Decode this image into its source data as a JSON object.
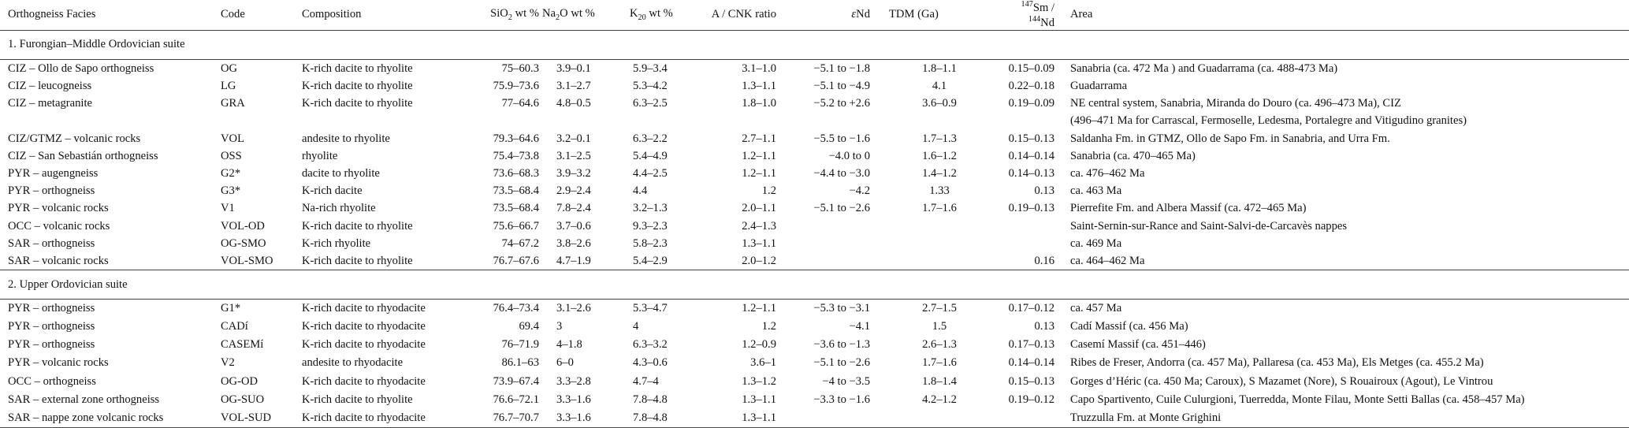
{
  "table": {
    "headers": [
      "Orthogneiss Facies",
      "Code",
      "Composition",
      [
        "SiO",
        {
          "text": "2",
          "style": "sub"
        },
        " wt %"
      ],
      [
        "Na",
        {
          "text": "2",
          "style": "sub"
        },
        "O wt %"
      ],
      [
        "K",
        {
          "text": "20",
          "style": "sub"
        },
        " wt %"
      ],
      "A / CNK ratio",
      [
        {
          "text": "ε",
          "style": "italic"
        },
        "Nd"
      ],
      "TDM (Ga)",
      [
        {
          "text": "147",
          "style": "sup"
        },
        "Sm / ",
        {
          "text": "144",
          "style": "sup"
        },
        "Nd"
      ],
      "Area"
    ],
    "sections": [
      {
        "title": "1. Furongian–Middle Ordovician suite",
        "rows": [
          [
            "CIZ – Ollo de Sapo orthogneiss",
            "OG",
            "K-rich dacite to rhyolite",
            "75–60.3",
            "3.9–0.1",
            "5.9–3.4",
            "3.1–1.0",
            "−5.1 to −1.8",
            "1.8–1.1",
            "0.15–0.09",
            "Sanabria (ca. 472 Ma ) and Guadarrama (ca. 488-473 Ma)"
          ],
          [
            "CIZ – leucogneiss",
            "LG",
            "K-rich dacite to rhyolite",
            "75.9–73.6",
            "3.1–2.7",
            "5.3–4.2",
            "1.3–1.1",
            "−5.1 to −4.9",
            "4.1",
            "0.22–0.18",
            "Guadarrama"
          ],
          [
            "CIZ – metagranite",
            "GRA",
            "K-rich dacite to rhyolite",
            "77–64.6",
            "4.8–0.5",
            "6.3–2.5",
            "1.8–1.0",
            "−5.2 to +2.6",
            "3.6–0.9",
            "0.19–0.09",
            "NE central system, Sanabria, Miranda do Douro (ca. 496–473 Ma), CIZ\n(496–471 Ma for Carrascal, Fermoselle, Ledesma, Portalegre and Vitigudino granites)"
          ],
          [
            "CIZ/GTMZ – volcanic rocks",
            "VOL",
            "andesite to rhyolite",
            "79.3–64.6",
            "3.2–0.1",
            "6.3–2.2",
            "2.7–1.1",
            "−5.5 to −1.6",
            "1.7–1.3",
            "0.15–0.13",
            "Saldanha Fm. in GTMZ, Ollo de Sapo Fm. in Sanabria, and Urra Fm."
          ],
          [
            "CIZ – San Sebastián orthogneiss",
            "OSS",
            "rhyolite",
            "75.4–73.8",
            "3.1–2.5",
            "5.4–4.9",
            "1.2–1.1",
            "−4.0 to 0",
            "1.6–1.2",
            "0.14–0.14",
            "Sanabria (ca. 470–465 Ma)"
          ],
          [
            "PYR – augengneiss",
            "G2*",
            "dacite to rhyolite",
            "73.6–68.3",
            "3.9–3.2",
            "4.4–2.5",
            "1.2–1.1",
            "−4.4 to −3.0",
            "1.4–1.2",
            "0.14–0.13",
            "ca. 476–462 Ma"
          ],
          [
            "PYR – orthogneiss",
            "G3*",
            "K-rich dacite",
            "73.5–68.4",
            "2.9–2.4",
            "4.4",
            "1.2",
            "−4.2",
            "1.33",
            "0.13",
            "ca. 463 Ma"
          ],
          [
            "PYR – volcanic rocks",
            "V1",
            "Na-rich rhyolite",
            "73.5–68.4",
            "7.8–2.4",
            "3.2–1.3",
            "2.0–1.1",
            "−5.1 to −2.6",
            "1.7–1.6",
            "0.19–0.13",
            "Pierrefite Fm. and Albera Massif (ca. 472–465 Ma)"
          ],
          [
            "OCC – volcanic rocks",
            "VOL-OD",
            "K-rich dacite to rhyolite",
            "75.6–66.7",
            "3.7–0.6",
            "9.3–2.3",
            "2.4–1.3",
            null,
            null,
            null,
            "Saint-Sernin-sur-Rance and Saint-Salvi-de-Carcavès nappes"
          ],
          [
            "SAR – orthogneiss",
            "OG-SMO",
            "K-rich rhyolite",
            "74–67.2",
            "3.8–2.6",
            "5.8–2.3",
            "1.3–1.1",
            null,
            null,
            null,
            "ca. 469 Ma"
          ],
          [
            "SAR – volcanic rocks",
            "VOL-SMO",
            "K-rich dacite to rhyolite",
            "76.7–67.6",
            "4.7–1.9",
            "5.4–2.9",
            "2.0–1.2",
            null,
            null,
            "0.16",
            "ca. 464–462 Ma"
          ]
        ]
      },
      {
        "title": "2. Upper Ordovician suite",
        "rows": [
          [
            "PYR – orthogneiss",
            "G1*",
            "K-rich dacite to rhyodacite",
            "76.4–73.4",
            "3.1–2.6",
            "5.3–4.7",
            "1.2–1.1",
            "−5.3 to −3.1",
            "2.7–1.5",
            "0.17–0.12",
            "ca. 457 Ma"
          ],
          [
            "PYR – orthogneiss",
            "CADí",
            "K-rich dacite to rhyodacite",
            "69.4",
            "3",
            "4",
            "1.2",
            "−4.1",
            "1.5",
            "0.13",
            "Cadí Massif (ca. 456 Ma)"
          ],
          [
            "PYR – orthogneiss",
            "CASEMí",
            "K-rich dacite to rhyodacite",
            "76–71.9",
            "4–1.8",
            "6.3–3.2",
            "1.2–0.9",
            "−3.6 to −1.3",
            "2.6–1.3",
            "0.17–0.13",
            "Casemí Massif (ca. 451–446)"
          ],
          [
            "PYR – volcanic rocks",
            "V2",
            "andesite to rhyodacite",
            "86.1–63",
            "6–0",
            "4.3–0.6",
            "3.6–1",
            "−5.1 to −2.6",
            "1.7–1.6",
            "0.14–0.14",
            "Ribes de Freser, Andorra (ca. 457 Ma), Pallaresa (ca. 453 Ma), Els Metges (ca. 455.2 Ma)"
          ],
          [
            "OCC – orthogneiss",
            "OG-OD",
            "K-rich dacite to rhyodacite",
            "73.9–67.4",
            "3.3–2.8",
            "4.7–4",
            "1.3–1.2",
            "−4 to −3.5",
            "1.8–1.4",
            "0.15–0.13",
            "Gorges d’Héric (ca. 450 Ma; Caroux), S Mazamet (Nore), S Rouairoux (Agout), Le Vintrou"
          ],
          [
            "SAR – external zone orthogneiss",
            "OG-SUO",
            "K-rich dacite to rhyolite",
            "76.6–72.1",
            "3.3–1.6",
            "7.8–4.8",
            "1.3–1.1",
            "−3.3 to −1.6",
            "4.2–1.2",
            "0.19–0.12",
            "Capo Spartivento, Cuile Culurgioni, Tuerredda, Monte Filau, Monte Setti Ballas (ca. 458–457 Ma)"
          ],
          [
            "SAR – nappe zone volcanic rocks",
            "VOL-SUD",
            "K-rich dacite to rhyodacite",
            "76.7–70.7",
            "3.3–1.6",
            "7.8–4.8",
            "1.3–1.1",
            null,
            null,
            null,
            "Truzzulla Fm. at Monte Grighini"
          ]
        ]
      }
    ]
  }
}
